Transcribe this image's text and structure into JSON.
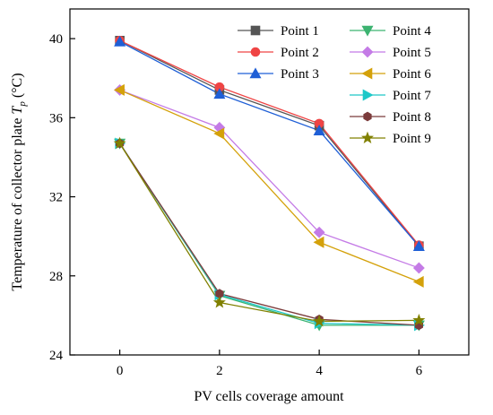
{
  "chart_data": {
    "type": "line",
    "xlabel": "PV cells coverage amount",
    "ylabel_prefix": "Temperature of collector plate ",
    "ylabel_var": "T",
    "ylabel_sub": "p",
    "ylabel_suffix": " (°C)",
    "xlim": [
      -1,
      7
    ],
    "ylim": [
      24,
      41.5
    ],
    "x_ticks": [
      0,
      2,
      4,
      6
    ],
    "y_ticks": [
      24,
      28,
      32,
      36,
      40
    ],
    "legend_placement": "top-right",
    "x": [
      0,
      2,
      4,
      6
    ],
    "series": [
      {
        "name": "Point 1",
        "marker": "square",
        "color": "#555555",
        "values": [
          39.9,
          37.4,
          35.6,
          29.5
        ]
      },
      {
        "name": "Point 2",
        "marker": "circle",
        "color": "#ef4444",
        "values": [
          39.9,
          37.55,
          35.7,
          29.55
        ]
      },
      {
        "name": "Point 3",
        "marker": "triangle-up",
        "color": "#1f5fd6",
        "values": [
          39.85,
          37.2,
          35.35,
          29.5
        ]
      },
      {
        "name": "Point 4",
        "marker": "triangle-down",
        "color": "#3cb371",
        "values": [
          34.7,
          27.0,
          25.5,
          25.5
        ]
      },
      {
        "name": "Point 5",
        "marker": "diamond",
        "color": "#c47be6",
        "values": [
          37.4,
          35.5,
          30.2,
          28.4
        ]
      },
      {
        "name": "Point 6",
        "marker": "triangle-left",
        "color": "#d4a10a",
        "values": [
          37.4,
          35.2,
          29.7,
          27.7
        ]
      },
      {
        "name": "Point 7",
        "marker": "triangle-right",
        "color": "#1ec8c8",
        "values": [
          34.7,
          27.05,
          25.6,
          25.5
        ]
      },
      {
        "name": "Point 8",
        "marker": "hexagon",
        "color": "#7b3b3b",
        "values": [
          34.7,
          27.1,
          25.8,
          25.5
        ]
      },
      {
        "name": "Point 9",
        "marker": "star",
        "color": "#808000",
        "values": [
          34.7,
          26.65,
          25.7,
          25.75
        ]
      }
    ]
  }
}
